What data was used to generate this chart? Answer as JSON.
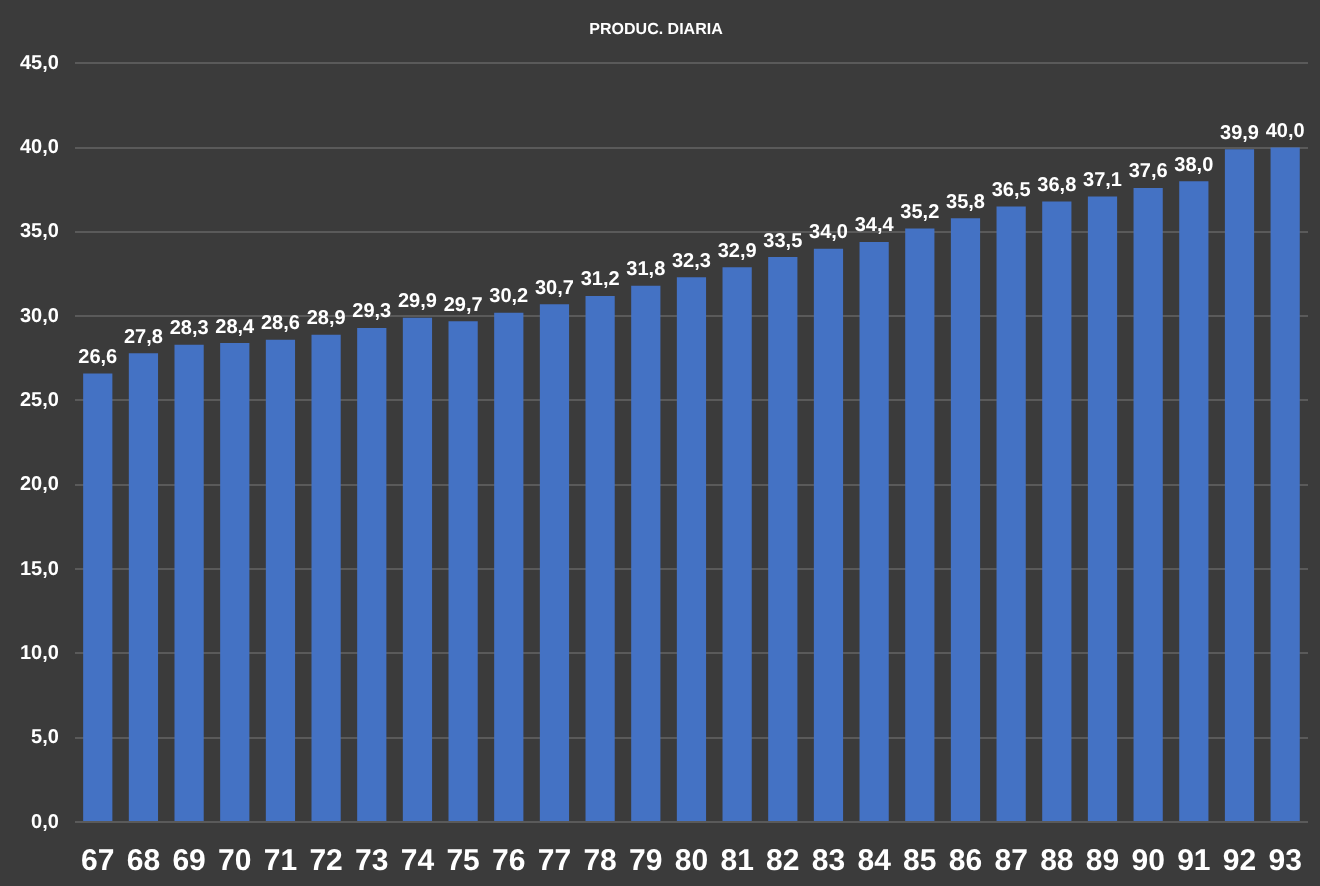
{
  "chart_data": {
    "type": "bar",
    "title": "PRODUC. DIARIA",
    "categories": [
      "67",
      "68",
      "69",
      "70",
      "71",
      "72",
      "73",
      "74",
      "75",
      "76",
      "77",
      "78",
      "79",
      "80",
      "81",
      "82",
      "83",
      "84",
      "85",
      "86",
      "87",
      "88",
      "89",
      "90",
      "91",
      "92",
      "93"
    ],
    "values": [
      26.6,
      27.8,
      28.3,
      28.4,
      28.6,
      28.9,
      29.3,
      29.9,
      29.7,
      30.2,
      30.7,
      31.2,
      31.8,
      32.3,
      32.9,
      33.5,
      34.0,
      34.4,
      35.2,
      35.8,
      36.5,
      36.8,
      37.1,
      37.6,
      38.0,
      39.9,
      40.0
    ],
    "value_labels": [
      "26,6",
      "27,8",
      "28,3",
      "28,4",
      "28,6",
      "28,9",
      "29,3",
      "29,9",
      "29,7",
      "30,2",
      "30,7",
      "31,2",
      "31,8",
      "32,3",
      "32,9",
      "33,5",
      "34,0",
      "34,4",
      "35,2",
      "35,8",
      "36,5",
      "36,8",
      "37,1",
      "37,6",
      "38,0",
      "39,9",
      "40,0"
    ],
    "color": "#4472c4",
    "ylim": [
      0,
      45
    ],
    "yticks": [
      {
        "value": 0,
        "label": "0,0"
      },
      {
        "value": 5,
        "label": "5,0"
      },
      {
        "value": 10,
        "label": "10,0"
      },
      {
        "value": 15,
        "label": "15,0"
      },
      {
        "value": 20,
        "label": "20,0"
      },
      {
        "value": 25,
        "label": "25,0"
      },
      {
        "value": 30,
        "label": "30,0"
      },
      {
        "value": 35,
        "label": "35,0"
      },
      {
        "value": 40,
        "label": "40,0"
      },
      {
        "value": 45,
        "label": "45,0"
      }
    ],
    "grid": "y"
  }
}
